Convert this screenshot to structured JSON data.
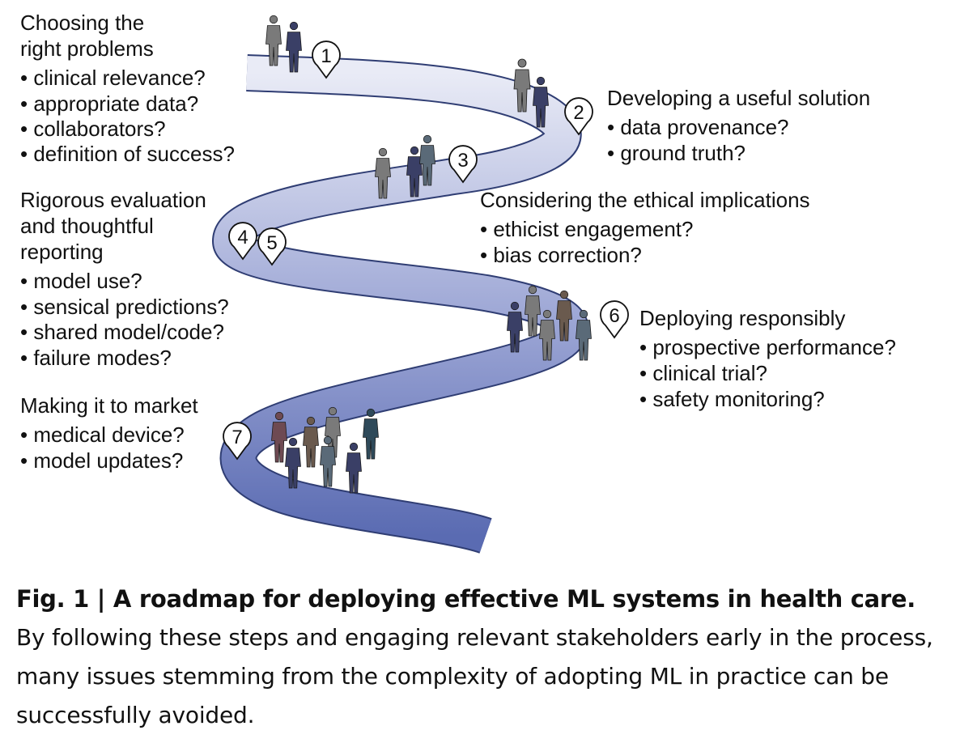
{
  "figure": {
    "steps": [
      {
        "number": "1",
        "title_lines": [
          "Choosing the",
          "right problems"
        ],
        "bullets": [
          "• clinical relevance?",
          "• appropriate data?",
          "• collaborators?",
          "• definition of success?"
        ]
      },
      {
        "number": "2",
        "title_lines": [
          "Developing a useful solution"
        ],
        "bullets": [
          "• data provenance?",
          "• ground truth?"
        ]
      },
      {
        "number": "3",
        "title_lines": [
          "Considering the ethical implications"
        ],
        "bullets": [
          "• ethicist engagement?",
          "• bias correction?"
        ]
      },
      {
        "number": "4",
        "title_lines": [
          "Rigorous evaluation",
          "and thoughtful",
          "reporting"
        ],
        "bullets": [
          "• model use?",
          "• sensical predictions?",
          "• shared model/code?",
          "• failure modes?"
        ]
      },
      {
        "number": "5",
        "title_lines": [],
        "bullets": []
      },
      {
        "number": "6",
        "title_lines": [
          "Deploying responsibly"
        ],
        "bullets": [
          "• prospective performance?",
          "• clinical trial?",
          "• safety monitoring?"
        ]
      },
      {
        "number": "7",
        "title_lines": [
          "Making it to market"
        ],
        "bullets": [
          "• medical device?",
          "• model updates?"
        ]
      }
    ],
    "colors": {
      "road_light": "#e9ebf6",
      "road_dark": "#5a6bb2",
      "road_edge": "#2f3d73",
      "person_palette": [
        "#7a7a7a",
        "#3a3f66",
        "#5a6a78",
        "#6e4a52",
        "#6a5a4e",
        "#2f4a5a"
      ]
    }
  },
  "caption": {
    "label": "Fig. 1 | ",
    "title": "A roadmap for deploying effective ML systems in health care.",
    "body": "By following these steps and engaging relevant stakeholders early in the process, many issues stemming from the complexity of adopting ML in practice can be successfully avoided."
  }
}
